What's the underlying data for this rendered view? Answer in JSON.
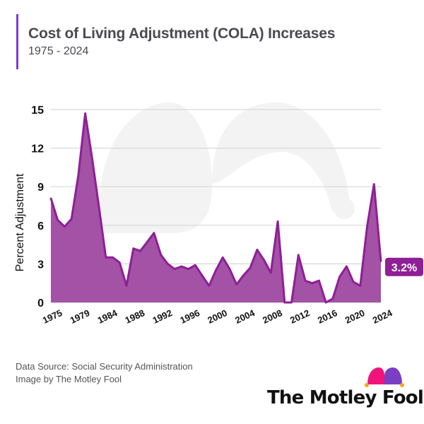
{
  "header": {
    "title": "Cost of Living Adjustment (COLA) Increases",
    "subtitle": "1975 - 2024"
  },
  "footer": {
    "source": "Data Source: Social Security Administration",
    "credit": "Image by The Motley Fool",
    "logo_text": "The Motley Fool"
  },
  "colors": {
    "accent": "#7b3fc4",
    "line": "#8e1f96",
    "fill": "#a04ca3",
    "callout": "#8e1f96"
  },
  "chart_data": {
    "type": "area",
    "title": "Cost of Living Adjustment (COLA) Increases",
    "subtitle": "1975 - 2024",
    "xlabel": "",
    "ylabel": "Percent Adjustment",
    "ylim": [
      0,
      15
    ],
    "yticks": [
      0,
      3,
      6,
      9,
      12,
      15
    ],
    "xtick_labels": [
      "1975",
      "1979",
      "1984",
      "1988",
      "1992",
      "1996",
      "2000",
      "2004",
      "2008",
      "2012",
      "2016",
      "2020",
      "2024"
    ],
    "grid": true,
    "legend": "none",
    "series": [
      {
        "name": "COLA",
        "values": [
          8.1,
          6.4,
          5.9,
          6.5,
          9.9,
          14.7,
          11.2,
          7.4,
          3.5,
          3.5,
          3.1,
          1.3,
          4.2,
          4.0,
          4.7,
          5.4,
          3.7,
          3.0,
          2.6,
          2.8,
          2.6,
          2.9,
          2.1,
          1.3,
          2.5,
          3.5,
          2.6,
          1.4,
          2.1,
          2.7,
          4.1,
          3.3,
          2.3,
          6.3,
          0.0,
          0.0,
          3.7,
          1.7,
          1.5,
          1.7,
          0.0,
          0.3,
          2.0,
          2.8,
          1.6,
          1.3,
          5.9,
          9.2,
          3.2
        ]
      }
    ],
    "annotation": "3.2%"
  }
}
